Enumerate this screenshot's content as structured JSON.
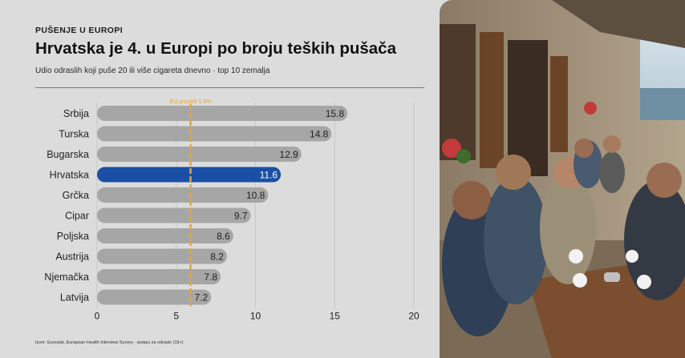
{
  "header": {
    "kicker": "PUŠENJE U EUROPI",
    "title": "Hrvatska je 4. u Europi po broju teških pušača",
    "subtitle": "Udio odraslih koji puše 20 ili više cigareta dnevno · top 10 zemalja"
  },
  "footer": {
    "source": "Izvor: Eurostat, European Health Interview Survey · podaci za odrasle (15+)"
  },
  "colors": {
    "bar": "#a6a6a6",
    "highlight": "#1a4fa6",
    "reference": "#e8a33a",
    "text": "#1f1f1f"
  },
  "chart_data": {
    "type": "bar",
    "orientation": "horizontal",
    "categories": [
      "Srbija",
      "Turska",
      "Bugarska",
      "Hrvatska",
      "Grčka",
      "Cipar",
      "Poljska",
      "Austrija",
      "Njemačka",
      "Latvija"
    ],
    "values": [
      15.8,
      14.8,
      12.9,
      11.6,
      10.8,
      9.7,
      8.6,
      8.2,
      7.8,
      7.2
    ],
    "value_labels": [
      "15.8",
      "14.8",
      "12.9",
      "11.6",
      "10.8",
      "9.7",
      "8.6",
      "8.2",
      "7.8",
      "7.2"
    ],
    "highlight": "Hrvatska",
    "reference_line": {
      "value": 5.9,
      "label": "EU prosjek 5.9%"
    },
    "xlim": [
      0,
      20
    ],
    "xticks": [
      "0",
      "5",
      "10",
      "15",
      "20"
    ],
    "grid": "vertical"
  },
  "photo": {
    "description_icon": "photo-cafe-smokers"
  }
}
